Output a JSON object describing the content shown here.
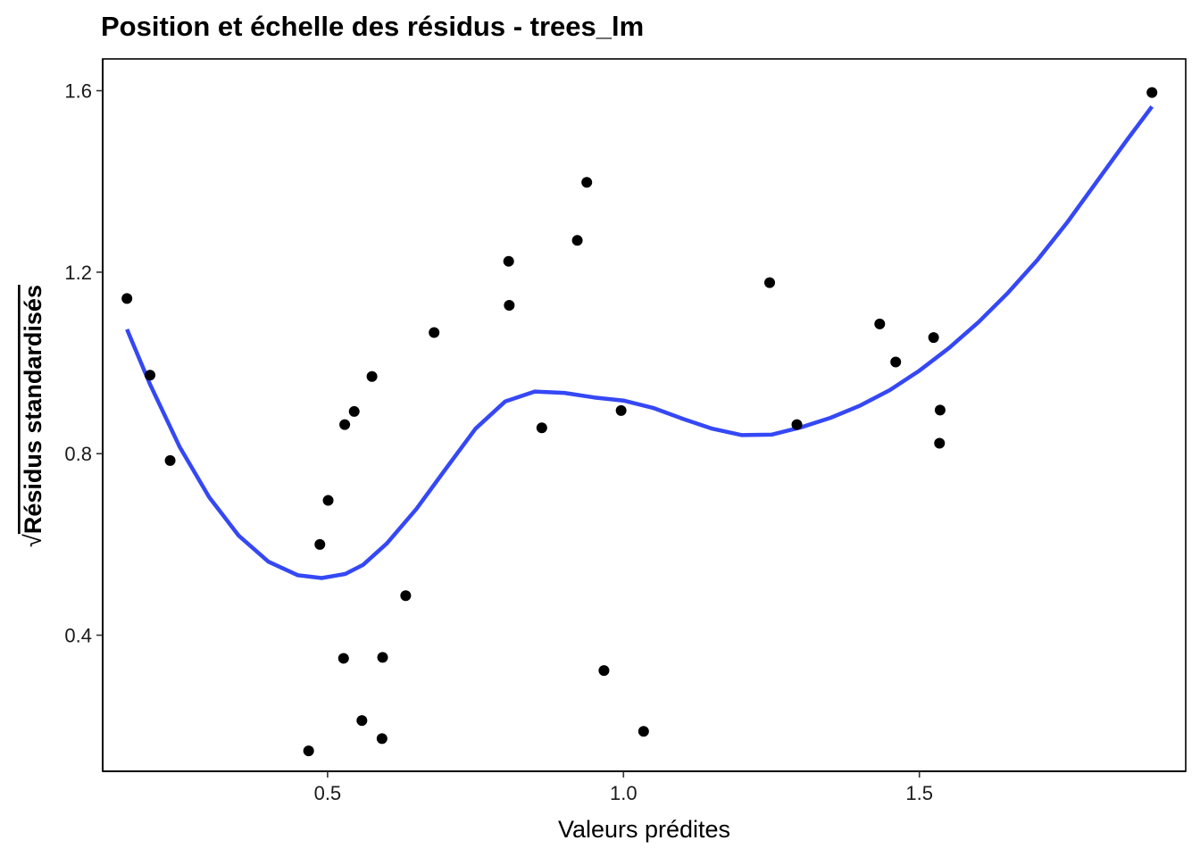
{
  "chart_data": {
    "type": "scatter",
    "title": "Position et échelle des résidus - trees_lm",
    "xlabel": "Valeurs prédites",
    "ylabel": "Résidus standardisés",
    "ylabel_prefix": "√",
    "xlim": [
      0.12,
      1.95
    ],
    "ylim": [
      0.1,
      1.67
    ],
    "xticks": [
      0.5,
      1.0,
      1.5
    ],
    "yticks": [
      0.4,
      0.8,
      1.2,
      1.6
    ],
    "xtick_labels": [
      "0.5",
      "1.0",
      "1.5"
    ],
    "ytick_labels": [
      "0.4",
      "0.8",
      "1.2",
      "1.6"
    ],
    "grid": false,
    "point_color": "#000000",
    "smooth_color": "#3548f5",
    "points": [
      [
        0.161,
        1.142
      ],
      [
        0.2,
        0.973
      ],
      [
        0.234,
        0.785
      ],
      [
        0.468,
        0.145
      ],
      [
        0.487,
        0.6
      ],
      [
        0.501,
        0.697
      ],
      [
        0.527,
        0.349
      ],
      [
        0.529,
        0.864
      ],
      [
        0.545,
        0.893
      ],
      [
        0.558,
        0.212
      ],
      [
        0.575,
        0.97
      ],
      [
        0.592,
        0.172
      ],
      [
        0.593,
        0.351
      ],
      [
        0.632,
        0.487
      ],
      [
        0.68,
        1.067
      ],
      [
        0.806,
        1.224
      ],
      [
        0.807,
        1.127
      ],
      [
        0.862,
        0.857
      ],
      [
        0.922,
        1.27
      ],
      [
        0.938,
        1.398
      ],
      [
        0.967,
        0.322
      ],
      [
        0.996,
        0.895
      ],
      [
        1.034,
        0.188
      ],
      [
        1.247,
        1.177
      ],
      [
        1.293,
        0.864
      ],
      [
        1.433,
        1.086
      ],
      [
        1.46,
        1.002
      ],
      [
        1.524,
        1.056
      ],
      [
        1.534,
        0.823
      ],
      [
        1.535,
        0.896
      ],
      [
        1.893,
        1.596
      ]
    ],
    "smooth": [
      [
        0.161,
        1.074
      ],
      [
        0.2,
        0.953
      ],
      [
        0.25,
        0.815
      ],
      [
        0.3,
        0.704
      ],
      [
        0.35,
        0.619
      ],
      [
        0.4,
        0.562
      ],
      [
        0.45,
        0.532
      ],
      [
        0.49,
        0.526
      ],
      [
        0.53,
        0.535
      ],
      [
        0.56,
        0.555
      ],
      [
        0.6,
        0.602
      ],
      [
        0.65,
        0.678
      ],
      [
        0.7,
        0.767
      ],
      [
        0.75,
        0.855
      ],
      [
        0.8,
        0.915
      ],
      [
        0.85,
        0.937
      ],
      [
        0.9,
        0.934
      ],
      [
        0.95,
        0.924
      ],
      [
        1.0,
        0.917
      ],
      [
        1.05,
        0.901
      ],
      [
        1.1,
        0.877
      ],
      [
        1.15,
        0.855
      ],
      [
        1.2,
        0.841
      ],
      [
        1.25,
        0.842
      ],
      [
        1.3,
        0.858
      ],
      [
        1.35,
        0.879
      ],
      [
        1.4,
        0.906
      ],
      [
        1.45,
        0.94
      ],
      [
        1.5,
        0.983
      ],
      [
        1.55,
        1.033
      ],
      [
        1.6,
        1.09
      ],
      [
        1.65,
        1.155
      ],
      [
        1.7,
        1.228
      ],
      [
        1.75,
        1.31
      ],
      [
        1.8,
        1.4
      ],
      [
        1.85,
        1.49
      ],
      [
        1.893,
        1.565
      ]
    ]
  }
}
